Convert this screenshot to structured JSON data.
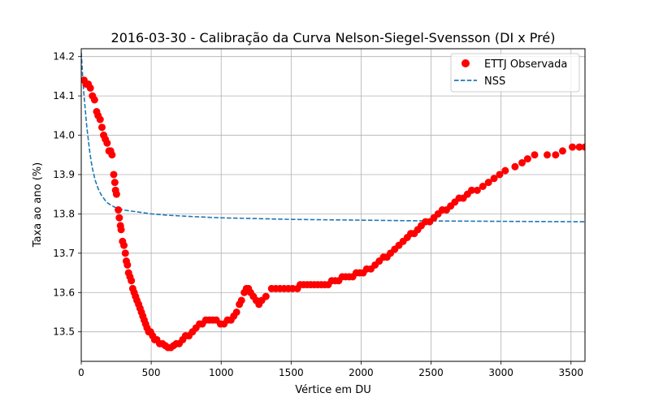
{
  "chart_data": {
    "type": "scatter",
    "title": "2016-03-30 - Calibração da Curva Nelson-Siegel-Svensson (DI x Pré)",
    "xlabel": "Vértice em DU",
    "ylabel": "Taxa ao ano (%)",
    "xlim": [
      0,
      3600
    ],
    "ylim": [
      13.425,
      14.22
    ],
    "xticks": [
      0,
      500,
      1000,
      1500,
      2000,
      2500,
      3000,
      3500
    ],
    "yticks": [
      13.5,
      13.6,
      13.7,
      13.8,
      13.9,
      14.0,
      14.1,
      14.2
    ],
    "xtick_labels": [
      "0",
      "500",
      "1000",
      "1500",
      "2000",
      "2500",
      "3000",
      "3500"
    ],
    "ytick_labels": [
      "13.5",
      "13.6",
      "13.7",
      "13.8",
      "13.9",
      "14.0",
      "14.1",
      "14.2"
    ],
    "grid": true,
    "legend_position": "top-right",
    "series": [
      {
        "name": "ETTJ Observada",
        "kind": "scatter",
        "color": "#ff0000",
        "points": [
          [
            20,
            14.14
          ],
          [
            35,
            14.13
          ],
          [
            50,
            14.13
          ],
          [
            65,
            14.12
          ],
          [
            80,
            14.1
          ],
          [
            95,
            14.09
          ],
          [
            110,
            14.06
          ],
          [
            120,
            14.05
          ],
          [
            135,
            14.04
          ],
          [
            148,
            14.02
          ],
          [
            160,
            14.0
          ],
          [
            172,
            13.99
          ],
          [
            185,
            13.98
          ],
          [
            198,
            13.96
          ],
          [
            210,
            13.96
          ],
          [
            220,
            13.95
          ],
          [
            232,
            13.9
          ],
          [
            240,
            13.88
          ],
          [
            245,
            13.86
          ],
          [
            252,
            13.85
          ],
          [
            265,
            13.81
          ],
          [
            272,
            13.79
          ],
          [
            280,
            13.77
          ],
          [
            285,
            13.76
          ],
          [
            295,
            13.73
          ],
          [
            305,
            13.72
          ],
          [
            315,
            13.7
          ],
          [
            322,
            13.68
          ],
          [
            330,
            13.67
          ],
          [
            338,
            13.65
          ],
          [
            348,
            13.64
          ],
          [
            358,
            13.63
          ],
          [
            368,
            13.61
          ],
          [
            378,
            13.6
          ],
          [
            388,
            13.59
          ],
          [
            398,
            13.58
          ],
          [
            410,
            13.57
          ],
          [
            420,
            13.56
          ],
          [
            430,
            13.55
          ],
          [
            440,
            13.54
          ],
          [
            450,
            13.53
          ],
          [
            460,
            13.52
          ],
          [
            470,
            13.51
          ],
          [
            482,
            13.5
          ],
          [
            495,
            13.5
          ],
          [
            510,
            13.49
          ],
          [
            525,
            13.48
          ],
          [
            540,
            13.48
          ],
          [
            560,
            13.47
          ],
          [
            580,
            13.47
          ],
          [
            600,
            13.465
          ],
          [
            620,
            13.46
          ],
          [
            640,
            13.46
          ],
          [
            660,
            13.465
          ],
          [
            680,
            13.47
          ],
          [
            700,
            13.47
          ],
          [
            725,
            13.48
          ],
          [
            745,
            13.49
          ],
          [
            770,
            13.49
          ],
          [
            795,
            13.5
          ],
          [
            820,
            13.51
          ],
          [
            845,
            13.52
          ],
          [
            865,
            13.52
          ],
          [
            890,
            13.53
          ],
          [
            915,
            13.53
          ],
          [
            940,
            13.53
          ],
          [
            965,
            13.53
          ],
          [
            995,
            13.52
          ],
          [
            1020,
            13.52
          ],
          [
            1045,
            13.53
          ],
          [
            1070,
            13.53
          ],
          [
            1090,
            13.54
          ],
          [
            1110,
            13.55
          ],
          [
            1130,
            13.57
          ],
          [
            1145,
            13.58
          ],
          [
            1165,
            13.6
          ],
          [
            1180,
            13.61
          ],
          [
            1195,
            13.61
          ],
          [
            1210,
            13.6
          ],
          [
            1230,
            13.59
          ],
          [
            1250,
            13.58
          ],
          [
            1270,
            13.57
          ],
          [
            1290,
            13.58
          ],
          [
            1320,
            13.59
          ],
          [
            1360,
            13.61
          ],
          [
            1390,
            13.61
          ],
          [
            1420,
            13.61
          ],
          [
            1450,
            13.61
          ],
          [
            1480,
            13.61
          ],
          [
            1510,
            13.61
          ],
          [
            1545,
            13.61
          ],
          [
            1565,
            13.62
          ],
          [
            1590,
            13.62
          ],
          [
            1615,
            13.62
          ],
          [
            1640,
            13.62
          ],
          [
            1665,
            13.62
          ],
          [
            1690,
            13.62
          ],
          [
            1715,
            13.62
          ],
          [
            1740,
            13.62
          ],
          [
            1765,
            13.62
          ],
          [
            1790,
            13.63
          ],
          [
            1815,
            13.63
          ],
          [
            1840,
            13.63
          ],
          [
            1865,
            13.64
          ],
          [
            1890,
            13.64
          ],
          [
            1915,
            13.64
          ],
          [
            1940,
            13.64
          ],
          [
            1965,
            13.65
          ],
          [
            1990,
            13.65
          ],
          [
            2015,
            13.65
          ],
          [
            2040,
            13.66
          ],
          [
            2070,
            13.66
          ],
          [
            2100,
            13.67
          ],
          [
            2130,
            13.68
          ],
          [
            2160,
            13.69
          ],
          [
            2185,
            13.69
          ],
          [
            2210,
            13.7
          ],
          [
            2240,
            13.71
          ],
          [
            2270,
            13.72
          ],
          [
            2300,
            13.73
          ],
          [
            2330,
            13.74
          ],
          [
            2355,
            13.75
          ],
          [
            2380,
            13.75
          ],
          [
            2405,
            13.76
          ],
          [
            2430,
            13.77
          ],
          [
            2460,
            13.78
          ],
          [
            2490,
            13.78
          ],
          [
            2520,
            13.79
          ],
          [
            2550,
            13.8
          ],
          [
            2580,
            13.81
          ],
          [
            2610,
            13.81
          ],
          [
            2640,
            13.82
          ],
          [
            2670,
            13.83
          ],
          [
            2700,
            13.84
          ],
          [
            2730,
            13.84
          ],
          [
            2760,
            13.85
          ],
          [
            2790,
            13.86
          ],
          [
            2830,
            13.86
          ],
          [
            2870,
            13.87
          ],
          [
            2910,
            13.88
          ],
          [
            2950,
            13.89
          ],
          [
            2990,
            13.9
          ],
          [
            3030,
            13.91
          ],
          [
            3100,
            13.92
          ],
          [
            3150,
            13.93
          ],
          [
            3190,
            13.94
          ],
          [
            3240,
            13.95
          ],
          [
            3330,
            13.95
          ],
          [
            3390,
            13.95
          ],
          [
            3440,
            13.96
          ],
          [
            3510,
            13.97
          ],
          [
            3560,
            13.97
          ],
          [
            3600,
            13.97
          ]
        ]
      },
      {
        "name": "NSS",
        "kind": "line",
        "style": "dashed",
        "color": "#1f77b4",
        "points": [
          [
            0,
            14.21
          ],
          [
            5,
            14.18
          ],
          [
            10,
            14.15
          ],
          [
            20,
            14.1
          ],
          [
            30,
            14.06
          ],
          [
            40,
            14.02
          ],
          [
            50,
            13.99
          ],
          [
            60,
            13.96
          ],
          [
            70,
            13.935
          ],
          [
            80,
            13.915
          ],
          [
            90,
            13.9
          ],
          [
            100,
            13.885
          ],
          [
            120,
            13.865
          ],
          [
            140,
            13.85
          ],
          [
            160,
            13.84
          ],
          [
            180,
            13.83
          ],
          [
            200,
            13.825
          ],
          [
            250,
            13.815
          ],
          [
            300,
            13.81
          ],
          [
            400,
            13.805
          ],
          [
            500,
            13.8
          ],
          [
            600,
            13.797
          ],
          [
            800,
            13.793
          ],
          [
            1000,
            13.79
          ],
          [
            1500,
            13.786
          ],
          [
            2000,
            13.784
          ],
          [
            2500,
            13.782
          ],
          [
            3000,
            13.781
          ],
          [
            3600,
            13.78
          ]
        ]
      }
    ]
  }
}
